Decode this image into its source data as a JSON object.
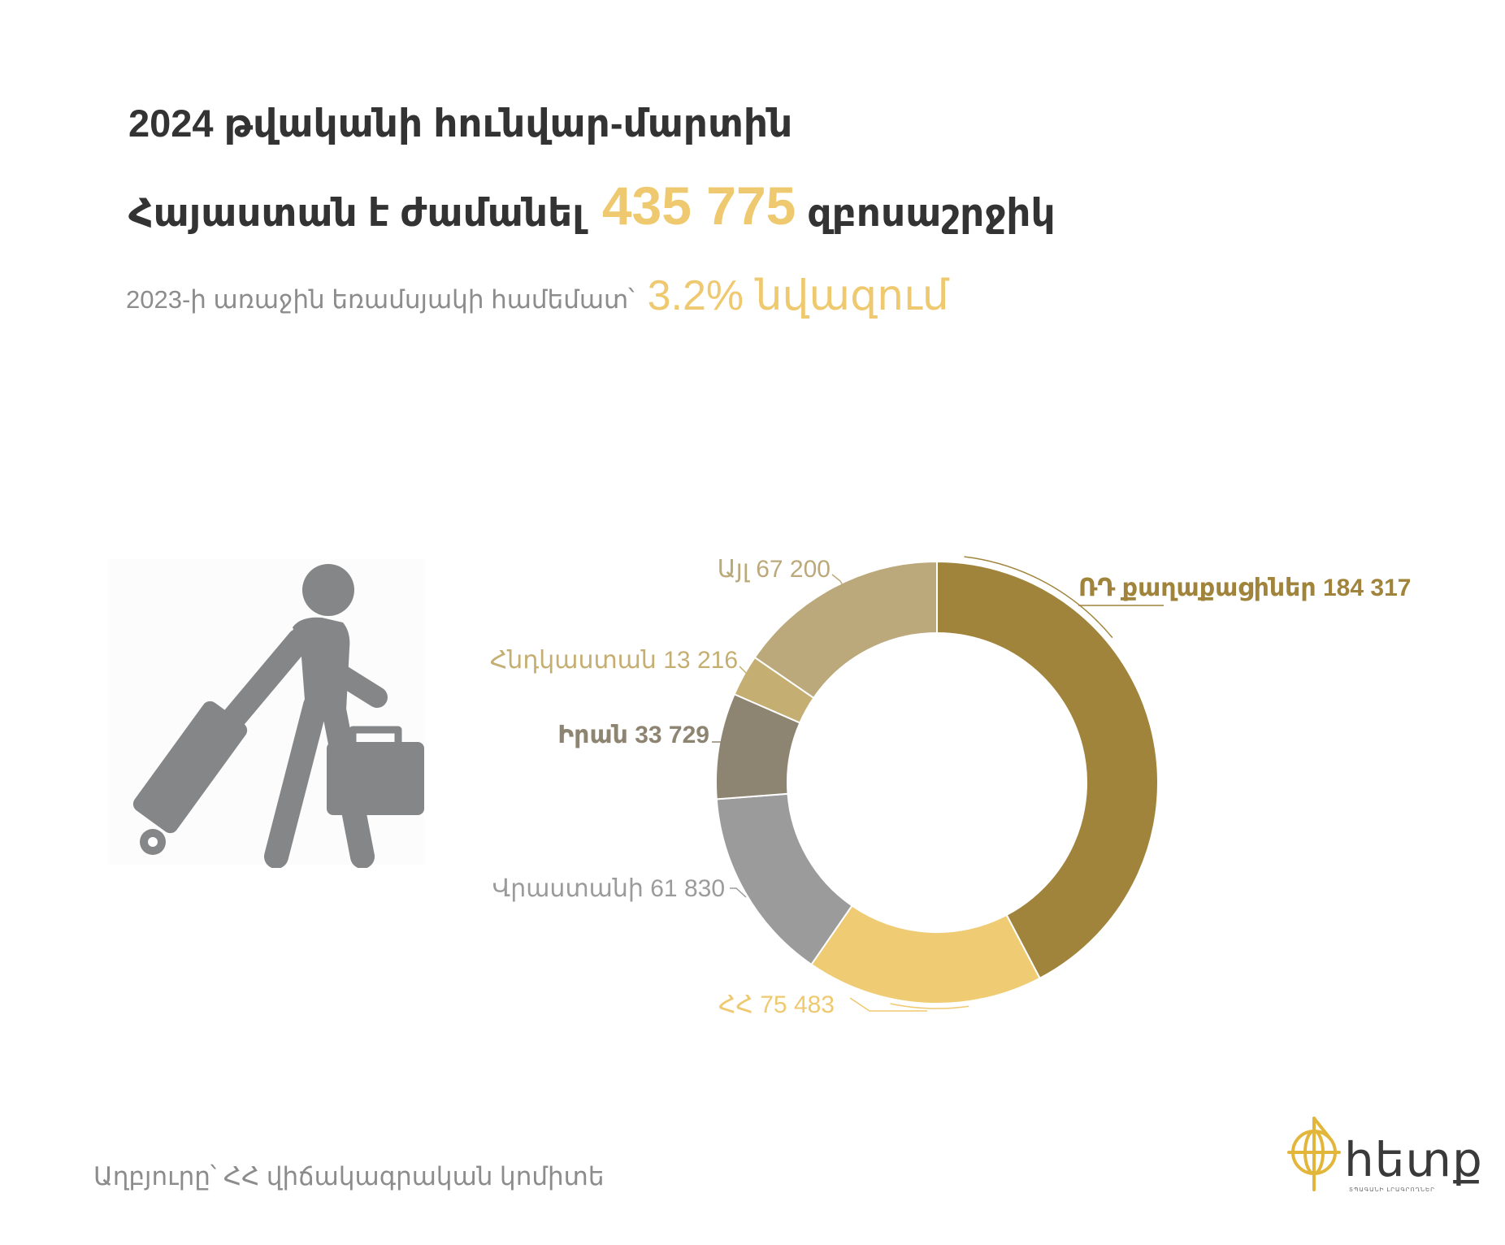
{
  "header": {
    "line1": "2024 թվականի հունվար-մարտին",
    "line2_prefix": "Հայաստան է ժամանել",
    "line2_number": "435 775",
    "line2_suffix": "զբոսաշրջիկ",
    "sub_text": "2023-ի առաջին եռամսյակի համեմատ՝",
    "sub_highlight": "3.2% նվազում"
  },
  "footer": {
    "source": "Աղբյուրը՝ ՀՀ վիճակագրական կոմիտե"
  },
  "logo": {
    "word": "հետք",
    "tagline": "ՏՊԱԳԱՆԻ ԼՐԱԳՐՈՂՆԵՐ"
  },
  "icons": {
    "traveler": "traveler-with-luggage-icon",
    "logo_mark": "compass-globe-icon"
  },
  "colors": {
    "highlight": "#efc96f",
    "text_dark": "#333333",
    "text_gray": "#8c8c8c"
  },
  "chart_data": {
    "type": "pie",
    "donut": true,
    "start": "top",
    "direction": "clockwise",
    "slices": [
      {
        "label": "ՌԴ քաղաքացիներ",
        "value": 184317,
        "value_text": "184 317",
        "color": "#a1843b"
      },
      {
        "label": "ՀՀ",
        "value": 75483,
        "value_text": "75 483",
        "color": "#efcb73"
      },
      {
        "label": "Վրաստանի",
        "value": 61830,
        "value_text": "61 830",
        "color": "#9b9b9b"
      },
      {
        "label": "Իրան",
        "value": 33729,
        "value_text": "33 729",
        "color": "#8d8571"
      },
      {
        "label": "Հնդկաստան",
        "value": 13216,
        "value_text": "13 216",
        "color": "#c4ae72"
      },
      {
        "label": "Այլ",
        "value": 67200,
        "value_text": "67 200",
        "color": "#bca97b"
      }
    ],
    "label_colors": [
      "#a1843b",
      "#efc96f",
      "#9b9b9b",
      "#8d8571",
      "#c4ae72",
      "#bca97b"
    ]
  }
}
